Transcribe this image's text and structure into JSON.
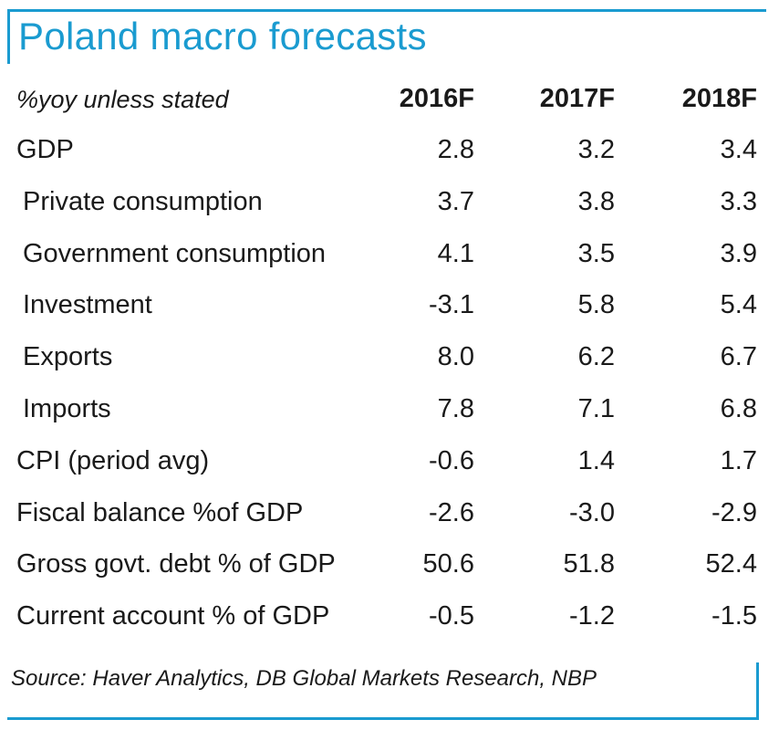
{
  "title": "Poland macro forecasts",
  "colors": {
    "accent": "#1a9bd0"
  },
  "header": {
    "label": "%yoy unless stated",
    "years": [
      "2016F",
      "2017F",
      "2018F"
    ]
  },
  "rows": [
    {
      "label": "GDP",
      "values": [
        "2.8",
        "3.2",
        "3.4"
      ]
    },
    {
      "label": "Private consumption",
      "values": [
        "3.7",
        "3.8",
        "3.3"
      ]
    },
    {
      "label": "Government consumption",
      "values": [
        "4.1",
        "3.5",
        "3.9"
      ]
    },
    {
      "label": "Investment",
      "values": [
        "-3.1",
        "5.8",
        "5.4"
      ]
    },
    {
      "label": "Exports",
      "values": [
        "8.0",
        "6.2",
        "6.7"
      ]
    },
    {
      "label": "Imports",
      "values": [
        "7.8",
        "7.1",
        "6.8"
      ]
    },
    {
      "label": "CPI (period avg)",
      "values": [
        "-0.6",
        "1.4",
        "1.7"
      ]
    },
    {
      "label": "Fiscal balance %of GDP",
      "values": [
        "-2.6",
        "-3.0",
        "-2.9"
      ]
    },
    {
      "label": "Gross govt. debt % of GDP",
      "values": [
        "50.6",
        "51.8",
        "52.4"
      ]
    },
    {
      "label": "Current account % of GDP",
      "values": [
        "-0.5",
        "-1.2",
        "-1.5"
      ]
    }
  ],
  "source": "Source: Haver Analytics, DB Global Markets Research, NBP"
}
